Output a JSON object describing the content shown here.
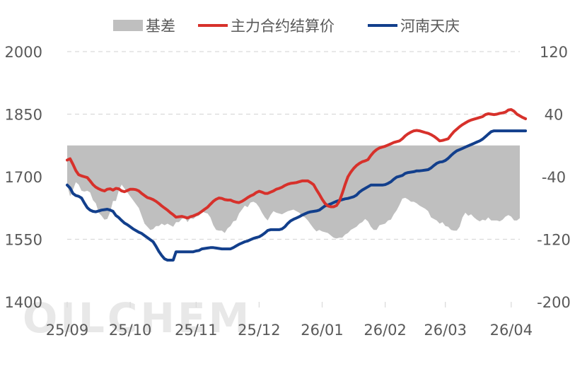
{
  "watermark": "OILCHEM",
  "chart_data": {
    "type": "line",
    "legend": [
      {
        "name": "基差",
        "color": "#bfbfbf",
        "kind": "area"
      },
      {
        "name": "主力合约结算价",
        "color": "#d7312b",
        "kind": "line"
      },
      {
        "name": "河南天庆",
        "color": "#123f8c",
        "kind": "line"
      }
    ],
    "x_tick_labels": [
      "25/09",
      "25/10",
      "25/11",
      "25/12",
      "26/01",
      "26/02",
      "26/03",
      "26/04"
    ],
    "x_tick_index": [
      0,
      22,
      45,
      67,
      89,
      111,
      132,
      155
    ],
    "y_left": {
      "ticks": [
        2000,
        1850,
        1700,
        1550,
        1400
      ],
      "range": [
        1400,
        2000
      ]
    },
    "y_right": {
      "ticks": [
        120,
        40,
        -40,
        -120,
        -200
      ],
      "range": [
        -200,
        120
      ]
    },
    "grid": true,
    "legend_position": "top",
    "series": [
      {
        "name": "基差",
        "axis": "right",
        "type": "area",
        "color": "#bfbfbf",
        "values": [
          -50,
          -65,
          -57,
          -47,
          -50,
          -58,
          -59,
          -58,
          -60,
          -70,
          -74,
          -86,
          -90,
          -95,
          -94,
          -85,
          -71,
          -71,
          -58,
          -50,
          -55,
          -60,
          -65,
          -70,
          -75,
          -80,
          -90,
          -100,
          -104,
          -108,
          -107,
          -103,
          -103,
          -100,
          -102,
          -100,
          -102,
          -104,
          -98,
          -98,
          -94,
          -92,
          -98,
          -93,
          -94,
          -91,
          -90,
          -84,
          -86,
          -87,
          -92,
          -102,
          -108,
          -109,
          -109,
          -112,
          -106,
          -103,
          -97,
          -96,
          -87,
          -82,
          -77,
          -79,
          -73,
          -72,
          -74,
          -79,
          -86,
          -92,
          -96,
          -89,
          -84,
          -86,
          -87,
          -88,
          -86,
          -84,
          -83,
          -82,
          -84,
          -86,
          -90,
          -92,
          -96,
          -101,
          -106,
          -110,
          -108,
          -110,
          -111,
          -112,
          -115,
          -118,
          -119,
          -118,
          -118,
          -114,
          -112,
          -108,
          -106,
          -104,
          -100,
          -98,
          -94,
          -97,
          -104,
          -108,
          -108,
          -102,
          -101,
          -100,
          -96,
          -95,
          -88,
          -83,
          -76,
          -68,
          -67,
          -69,
          -72,
          -72,
          -74,
          -77,
          -79,
          -81,
          -84,
          -92,
          -94,
          -96,
          -100,
          -98,
          -103,
          -104,
          -108,
          -109,
          -109,
          -104,
          -92,
          -86,
          -90,
          -88,
          -92,
          -95,
          -97,
          -95,
          -96,
          -92,
          -96,
          -96,
          -96,
          -97,
          -95,
          -91,
          -89,
          -91,
          -96,
          -96,
          -93
        ]
      },
      {
        "name": "主力合约结算价",
        "axis": "left",
        "type": "line",
        "color": "#d7312b",
        "values": [
          1740,
          1743,
          1730,
          1715,
          1705,
          1702,
          1700,
          1698,
          1690,
          1681,
          1675,
          1671,
          1668,
          1666,
          1670,
          1671,
          1668,
          1672,
          1671,
          1666,
          1664,
          1667,
          1670,
          1670,
          1669,
          1666,
          1660,
          1655,
          1650,
          1648,
          1645,
          1641,
          1636,
          1630,
          1625,
          1620,
          1614,
          1609,
          1603,
          1604,
          1605,
          1603,
          1601,
          1604,
          1606,
          1609,
          1612,
          1617,
          1622,
          1627,
          1634,
          1641,
          1646,
          1649,
          1648,
          1645,
          1644,
          1644,
          1641,
          1639,
          1638,
          1641,
          1645,
          1650,
          1654,
          1657,
          1662,
          1665,
          1663,
          1660,
          1660,
          1663,
          1666,
          1670,
          1672,
          1675,
          1679,
          1682,
          1684,
          1685,
          1686,
          1688,
          1690,
          1690,
          1690,
          1686,
          1681,
          1669,
          1658,
          1646,
          1636,
          1630,
          1628,
          1628,
          1631,
          1641,
          1660,
          1681,
          1700,
          1711,
          1720,
          1727,
          1732,
          1736,
          1738,
          1741,
          1751,
          1759,
          1765,
          1769,
          1771,
          1773,
          1776,
          1779,
          1782,
          1784,
          1786,
          1791,
          1798,
          1803,
          1807,
          1810,
          1811,
          1810,
          1808,
          1806,
          1804,
          1801,
          1797,
          1792,
          1786,
          1787,
          1789,
          1791,
          1800,
          1808,
          1814,
          1820,
          1825,
          1829,
          1833,
          1836,
          1838,
          1840,
          1842,
          1844,
          1849,
          1851,
          1850,
          1849,
          1850,
          1852,
          1853,
          1855,
          1860,
          1861,
          1857,
          1850,
          1846,
          1842,
          1839
        ]
      },
      {
        "name": "河南天庆",
        "axis": "left",
        "type": "line",
        "color": "#123f8c",
        "values": [
          1680,
          1673,
          1660,
          1655,
          1653,
          1649,
          1637,
          1626,
          1620,
          1617,
          1616,
          1618,
          1620,
          1621,
          1622,
          1620,
          1617,
          1607,
          1602,
          1595,
          1589,
          1585,
          1580,
          1575,
          1571,
          1567,
          1564,
          1559,
          1554,
          1549,
          1544,
          1533,
          1521,
          1511,
          1503,
          1500,
          1500,
          1500,
          1520,
          1520,
          1520,
          1520,
          1520,
          1520,
          1520,
          1522,
          1523,
          1527,
          1528,
          1529,
          1530,
          1530,
          1529,
          1528,
          1527,
          1527,
          1527,
          1527,
          1530,
          1534,
          1538,
          1541,
          1544,
          1546,
          1549,
          1552,
          1554,
          1556,
          1560,
          1565,
          1571,
          1573,
          1573,
          1573,
          1573,
          1575,
          1580,
          1588,
          1594,
          1598,
          1601,
          1604,
          1608,
          1611,
          1614,
          1616,
          1617,
          1618,
          1620,
          1625,
          1630,
          1632,
          1635,
          1638,
          1641,
          1643,
          1645,
          1647,
          1648,
          1650,
          1652,
          1656,
          1663,
          1668,
          1672,
          1676,
          1680,
          1680,
          1680,
          1680,
          1680,
          1681,
          1684,
          1688,
          1694,
          1699,
          1701,
          1703,
          1708,
          1710,
          1711,
          1712,
          1714,
          1714,
          1715,
          1716,
          1717,
          1721,
          1727,
          1732,
          1735,
          1736,
          1739,
          1744,
          1751,
          1757,
          1762,
          1765,
          1768,
          1771,
          1774,
          1777,
          1780,
          1783,
          1786,
          1790,
          1796,
          1802,
          1808,
          1810,
          1810,
          1810,
          1810,
          1810,
          1810,
          1810,
          1810,
          1810,
          1810,
          1810,
          1810
        ]
      }
    ]
  }
}
